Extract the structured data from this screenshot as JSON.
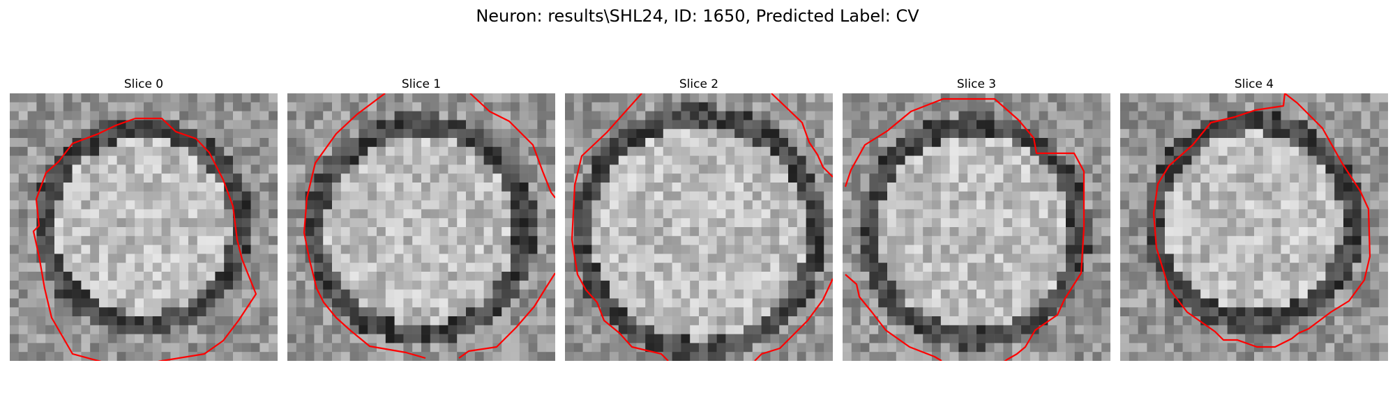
{
  "figure": {
    "title": "Neuron: results\\SHL24, ID: 1650, Predicted Label: CV"
  },
  "panels": [
    {
      "title": "Slice 0",
      "image": "grayscale-em-cell-body-slice-0",
      "overlay": "red-contour"
    },
    {
      "title": "Slice 1",
      "image": "grayscale-em-cell-body-slice-1",
      "overlay": "red-contour"
    },
    {
      "title": "Slice 2",
      "image": "grayscale-em-cell-body-slice-2",
      "overlay": "red-contour"
    },
    {
      "title": "Slice 3",
      "image": "grayscale-em-cell-body-slice-3",
      "overlay": "red-contour"
    },
    {
      "title": "Slice 4",
      "image": "grayscale-em-cell-body-slice-4",
      "overlay": "red-contour"
    }
  ],
  "colors": {
    "contour": "#ff0000",
    "ring": "#2a2a2a",
    "interior": "#c4c4c4",
    "background": "#a0a0a0"
  }
}
